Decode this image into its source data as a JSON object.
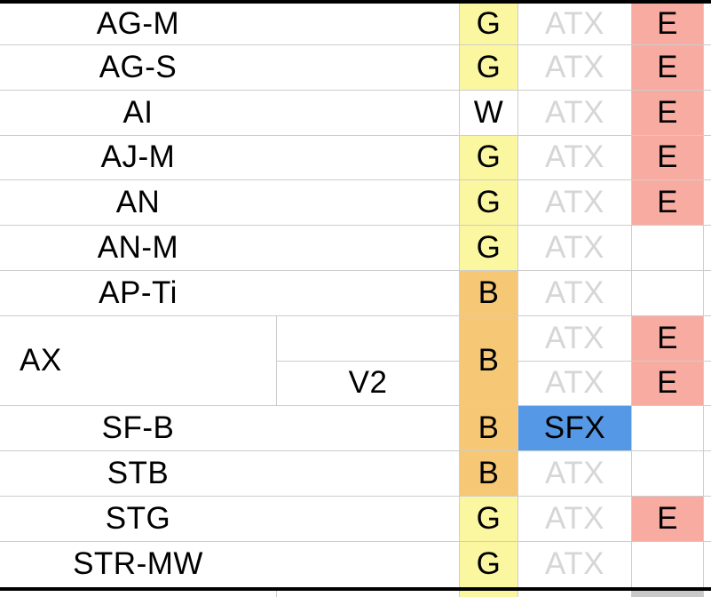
{
  "table": {
    "muted_column_value": "ATX",
    "colors": {
      "grade_g_fill": "#FBF7A1",
      "grade_b_fill": "#F6C876",
      "edition_fill": "#F8ABA0",
      "sfx_fill": "#5599E6",
      "partial_gray_fill": "#C9C9C9",
      "muted_text": "#D6D6D6",
      "gridline": "#CDCDCD",
      "border": "#000000"
    },
    "rows": [
      {
        "label": "AG-M",
        "grade": "G",
        "form": "ATX",
        "edition": "E"
      },
      {
        "label": "AG-S",
        "grade": "G",
        "form": "ATX",
        "edition": "E"
      },
      {
        "label": "AI",
        "grade": "W",
        "form": "ATX",
        "edition": "E"
      },
      {
        "label": "AJ-M",
        "grade": "G",
        "form": "ATX",
        "edition": "E"
      },
      {
        "label": "AN",
        "grade": "G",
        "form": "ATX",
        "edition": "E"
      },
      {
        "label": "AN-M",
        "grade": "G",
        "form": "ATX",
        "edition": ""
      },
      {
        "label": "AP-Ti",
        "grade": "B",
        "form": "ATX",
        "edition": ""
      },
      {
        "label": "AX",
        "grade": "B",
        "variant_1": "",
        "form_1": "ATX",
        "edition_1": "E",
        "variant_2": "V2",
        "form_2": "ATX",
        "edition_2": "E"
      },
      {
        "label": "SF-B",
        "grade": "B",
        "form": "SFX",
        "edition": ""
      },
      {
        "label": "STB",
        "grade": "B",
        "form": "ATX",
        "edition": ""
      },
      {
        "label": "STG",
        "grade": "G",
        "form": "ATX",
        "edition": "E"
      },
      {
        "label": "STR-MW",
        "grade": "G",
        "form": "ATX",
        "edition": ""
      }
    ],
    "partial_row": {
      "grade": "",
      "form": "",
      "edition": ""
    }
  }
}
